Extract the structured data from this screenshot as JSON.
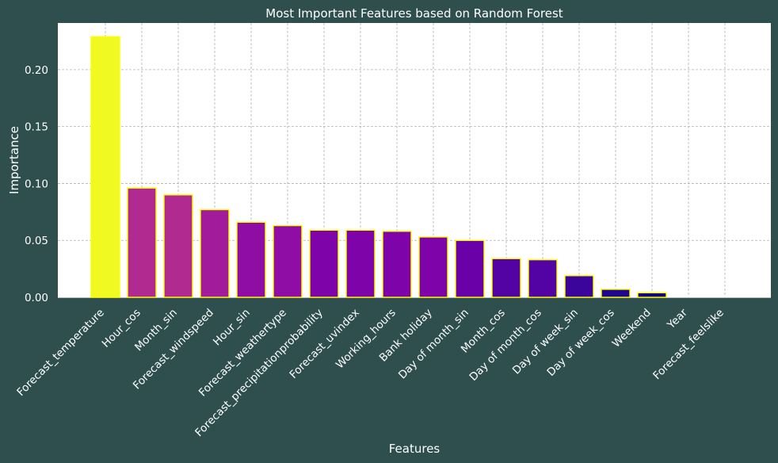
{
  "chart_data": {
    "type": "bar",
    "title": "Most Important Features based on Random Forest",
    "xlabel": "Features",
    "ylabel": "Importance",
    "ylim": [
      0,
      0.241
    ],
    "yticks": [
      "0.00",
      "0.05",
      "0.10",
      "0.15",
      "0.20"
    ],
    "ytick_values": [
      0,
      0.05,
      0.1,
      0.15,
      0.2
    ],
    "grid": true,
    "categories": [
      "Forecast_temperature",
      "Hour_cos",
      "Month_sin",
      "Forecast_windspeed",
      "Hour_sin",
      "Forecast_weathertype",
      "Forecast_precipitationprobability",
      "Forecast_uvindex",
      "Working_hours",
      "Bank holiday",
      "Day of month_sin",
      "Month_cos",
      "Day of month_cos",
      "Day of week_sin",
      "Day of week_cos",
      "Weekend",
      "Year",
      "Forecast_feelslike"
    ],
    "values": [
      0.229,
      0.096,
      0.09,
      0.077,
      0.066,
      0.063,
      0.059,
      0.059,
      0.058,
      0.053,
      0.05,
      0.034,
      0.033,
      0.019,
      0.007,
      0.004,
      0.0,
      0.0
    ],
    "colors": [
      "#f0f921",
      "#b12a90",
      "#b12a90",
      "#a11b9b",
      "#8f0da4",
      "#8f0da4",
      "#7e03a8",
      "#7e03a8",
      "#7e03a8",
      "#7e03a8",
      "#6a00a8",
      "#5302a3",
      "#5302a3",
      "#3b049a",
      "#1f068e",
      "#10067f",
      "#0d0887",
      "#0d0887"
    ],
    "edge_color": "#ffff00",
    "background": "#2f4f4f",
    "plot_background": "#ffffff"
  }
}
